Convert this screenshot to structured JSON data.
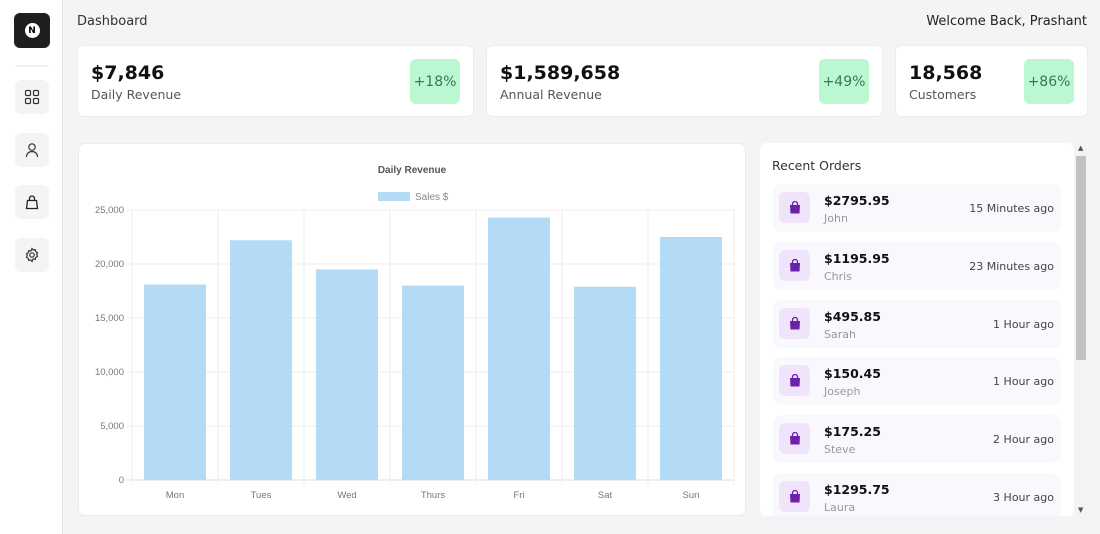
{
  "header": {
    "title": "Dashboard",
    "welcome": "Welcome Back, Prashant"
  },
  "sidebar": {
    "logo": "N",
    "items": [
      {
        "icon": "grid-icon"
      },
      {
        "icon": "user-icon"
      },
      {
        "icon": "shopping-bag-icon"
      },
      {
        "icon": "gear-icon"
      }
    ]
  },
  "stats": [
    {
      "value": "$7,846",
      "label": "Daily Revenue",
      "change": "+18%"
    },
    {
      "value": "$1,589,658",
      "label": "Annual Revenue",
      "change": "+49%"
    },
    {
      "value": "18,568",
      "label": "Customers",
      "change": "+86%"
    }
  ],
  "colors": {
    "bar": "#b3dbf6",
    "badge": "#bbf7d0",
    "order_icon": "#6b21a8"
  },
  "chart_data": {
    "type": "bar",
    "title": "Daily Revenue",
    "categories": [
      "Mon",
      "Tues",
      "Wed",
      "Thurs",
      "Fri",
      "Sat",
      "Sun"
    ],
    "series": [
      {
        "name": "Sales $",
        "values": [
          18100,
          22200,
          19500,
          18000,
          24300,
          17900,
          22500
        ]
      }
    ],
    "yticks": [
      "0",
      "5,000",
      "10,000",
      "15,000",
      "20,000",
      "25,000"
    ],
    "ylim": [
      0,
      25000
    ],
    "grid": true,
    "legend": "top"
  },
  "orders": {
    "title": "Recent Orders",
    "items": [
      {
        "amount": "$2795.95",
        "name": "John",
        "time": "15 Minutes ago"
      },
      {
        "amount": "$1195.95",
        "name": "Chris",
        "time": "23 Minutes ago"
      },
      {
        "amount": "$495.85",
        "name": "Sarah",
        "time": "1 Hour ago"
      },
      {
        "amount": "$150.45",
        "name": "Joseph",
        "time": "1 Hour ago"
      },
      {
        "amount": "$175.25",
        "name": "Steve",
        "time": "2 Hour ago"
      },
      {
        "amount": "$1295.75",
        "name": "Laura",
        "time": "3 Hour ago"
      }
    ]
  }
}
